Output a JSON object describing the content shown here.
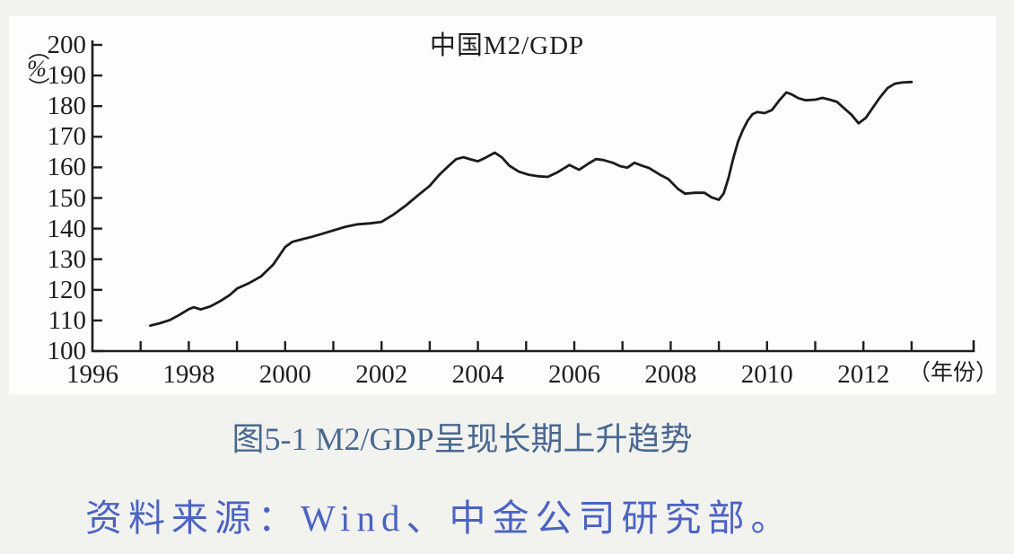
{
  "page": {
    "background_color": "#f2f2ef",
    "panel_color": "#fdfdfc"
  },
  "chart": {
    "title": "中国M2/GDP",
    "y_unit": {
      "open": "（",
      "symbol": "%",
      "close": "）"
    },
    "x_unit_label": "（年份）",
    "line_color": "#1b1b1b",
    "axis_color": "#1e1e1e",
    "text_color": "#1e1e1e"
  },
  "chart_data": {
    "type": "line",
    "title": "中国M2/GDP",
    "xlabel": "年份",
    "ylabel": "%",
    "xlim": [
      1996,
      2013.3
    ],
    "ylim": [
      100,
      200
    ],
    "grid": false,
    "legend": null,
    "y_ticks": [
      100,
      110,
      120,
      130,
      140,
      150,
      160,
      170,
      180,
      190,
      200
    ],
    "x_minor_ticks": [
      1997,
      1998,
      1999,
      2000,
      2001,
      2002,
      2003,
      2004,
      2005,
      2006,
      2007,
      2008,
      2009,
      2010,
      2011,
      2012,
      2013
    ],
    "x_labeled_years": [
      "1996",
      "1998",
      "2000",
      "2002",
      "2004",
      "2006",
      "2008",
      "2010",
      "2012"
    ],
    "series": [
      {
        "name": "中国M2/GDP",
        "points": [
          [
            1997.2,
            108.3
          ],
          [
            1997.4,
            109.1
          ],
          [
            1997.6,
            110.1
          ],
          [
            1997.8,
            111.8
          ],
          [
            1998.0,
            113.7
          ],
          [
            1998.1,
            114.3
          ],
          [
            1998.25,
            113.6
          ],
          [
            1998.45,
            114.6
          ],
          [
            1998.65,
            116.3
          ],
          [
            1998.85,
            118.3
          ],
          [
            1999.0,
            120.4
          ],
          [
            1999.25,
            122.2
          ],
          [
            1999.5,
            124.4
          ],
          [
            1999.75,
            128.2
          ],
          [
            2000.0,
            134.0
          ],
          [
            2000.15,
            135.7
          ],
          [
            2000.35,
            136.5
          ],
          [
            2000.55,
            137.3
          ],
          [
            2000.75,
            138.2
          ],
          [
            2001.0,
            139.4
          ],
          [
            2001.25,
            140.6
          ],
          [
            2001.5,
            141.4
          ],
          [
            2001.75,
            141.7
          ],
          [
            2002.0,
            142.2
          ],
          [
            2002.25,
            144.6
          ],
          [
            2002.5,
            147.5
          ],
          [
            2002.75,
            150.8
          ],
          [
            2003.0,
            154.0
          ],
          [
            2003.2,
            157.6
          ],
          [
            2003.4,
            160.6
          ],
          [
            2003.55,
            162.7
          ],
          [
            2003.7,
            163.3
          ],
          [
            2003.85,
            162.6
          ],
          [
            2004.0,
            162.0
          ],
          [
            2004.15,
            163.1
          ],
          [
            2004.35,
            164.8
          ],
          [
            2004.5,
            163.2
          ],
          [
            2004.65,
            160.6
          ],
          [
            2004.85,
            158.6
          ],
          [
            2005.05,
            157.6
          ],
          [
            2005.25,
            157.1
          ],
          [
            2005.45,
            156.9
          ],
          [
            2005.65,
            158.4
          ],
          [
            2005.9,
            160.8
          ],
          [
            2006.1,
            159.2
          ],
          [
            2006.3,
            161.3
          ],
          [
            2006.45,
            162.7
          ],
          [
            2006.6,
            162.4
          ],
          [
            2006.8,
            161.5
          ],
          [
            2006.95,
            160.4
          ],
          [
            2007.1,
            159.9
          ],
          [
            2007.25,
            161.5
          ],
          [
            2007.4,
            160.6
          ],
          [
            2007.55,
            159.8
          ],
          [
            2007.8,
            157.4
          ],
          [
            2007.95,
            156.2
          ],
          [
            2008.15,
            153.0
          ],
          [
            2008.3,
            151.4
          ],
          [
            2008.5,
            151.7
          ],
          [
            2008.7,
            151.7
          ],
          [
            2008.85,
            150.2
          ],
          [
            2009.0,
            149.4
          ],
          [
            2009.1,
            151.5
          ],
          [
            2009.2,
            156.5
          ],
          [
            2009.3,
            163.0
          ],
          [
            2009.4,
            168.5
          ],
          [
            2009.5,
            172.3
          ],
          [
            2009.6,
            175.3
          ],
          [
            2009.7,
            177.4
          ],
          [
            2009.8,
            178.1
          ],
          [
            2009.95,
            177.7
          ],
          [
            2010.1,
            178.7
          ],
          [
            2010.25,
            181.8
          ],
          [
            2010.4,
            184.5
          ],
          [
            2010.5,
            183.9
          ],
          [
            2010.65,
            182.6
          ],
          [
            2010.8,
            181.9
          ],
          [
            2011.0,
            182.1
          ],
          [
            2011.15,
            182.7
          ],
          [
            2011.3,
            182.1
          ],
          [
            2011.45,
            181.4
          ],
          [
            2011.6,
            179.3
          ],
          [
            2011.75,
            177.2
          ],
          [
            2011.9,
            174.4
          ],
          [
            2012.05,
            176.2
          ],
          [
            2012.2,
            179.6
          ],
          [
            2012.35,
            183.0
          ],
          [
            2012.5,
            185.9
          ],
          [
            2012.65,
            187.3
          ],
          [
            2012.8,
            187.7
          ],
          [
            2013.0,
            187.9
          ]
        ]
      }
    ]
  },
  "caption": {
    "text": "图5-1 M2/GDP呈现长期上升趋势",
    "color": "#486890"
  },
  "source": {
    "text": "资料来源：Wind、中金公司研究部。",
    "color": "#4a63c4"
  }
}
